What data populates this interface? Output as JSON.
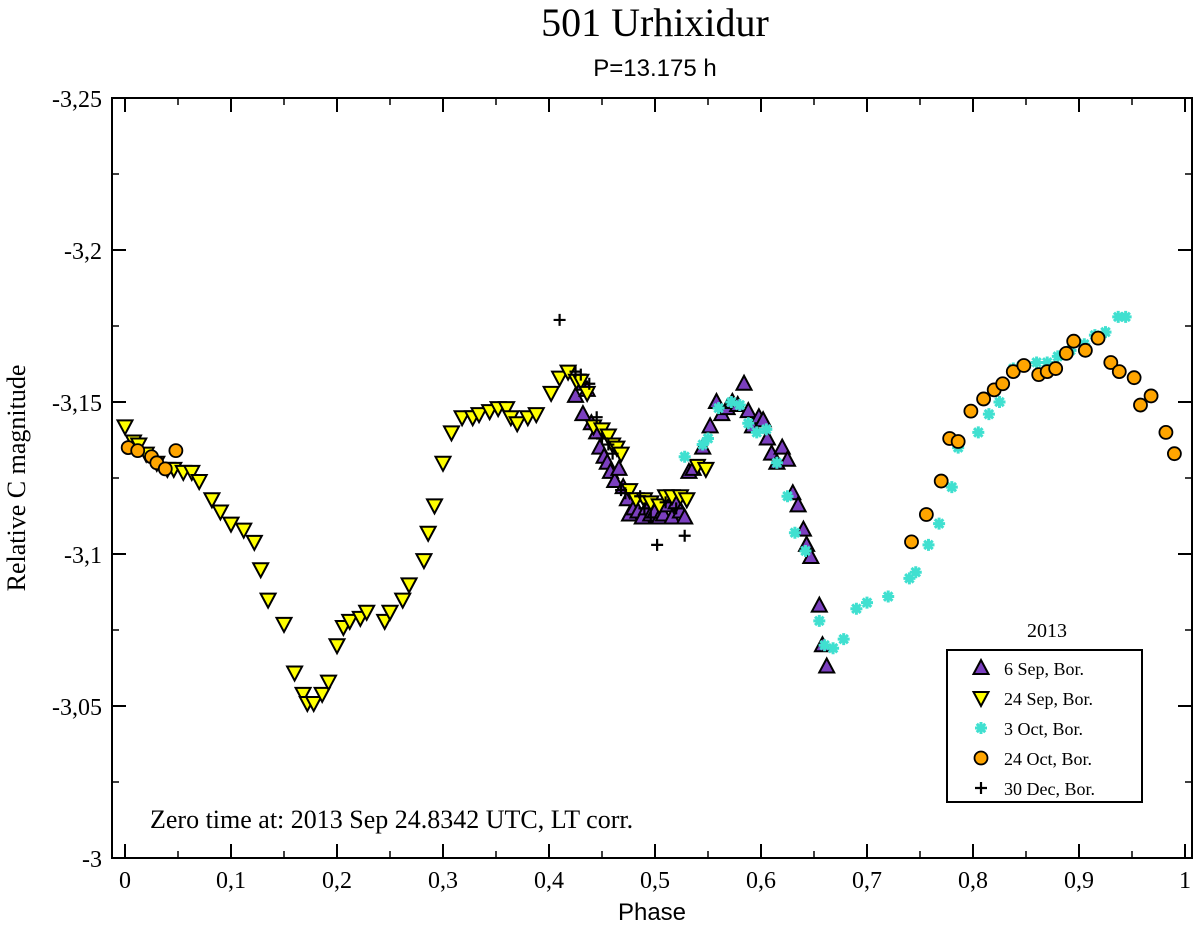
{
  "chart_data": {
    "type": "scatter",
    "title": "501 Urhixidur",
    "subtitle": "P=13.175 h",
    "xlabel": "Phase",
    "ylabel": "Relative C magnitude",
    "xlim": [
      0,
      1
    ],
    "ylim": [
      -3.25,
      -3.0
    ],
    "y_inverted": true,
    "x_ticks": [
      0,
      0.1,
      0.2,
      0.3,
      0.4,
      0.5,
      0.6,
      0.7,
      0.8,
      0.9,
      1
    ],
    "x_tick_labels": [
      "0",
      "0,1",
      "0,2",
      "0,3",
      "0,4",
      "0,5",
      "0,6",
      "0,7",
      "0,8",
      "0,9",
      "1"
    ],
    "y_ticks": [
      -3.25,
      -3.2,
      -3.15,
      -3.1,
      -3.05,
      -3.0
    ],
    "y_tick_labels": [
      "-3,25",
      "-3,2",
      "-3,15",
      "-3,1",
      "-3,05",
      "-3"
    ],
    "annotation": "Zero time at: 2013 Sep 24.8342 UTC, LT corr.",
    "legend_title": "2013",
    "legend_position": "bottom-right",
    "colors": {
      "sep6": "#7b3fbf",
      "sep24": "#ffff00",
      "oct3": "#40e0d0",
      "oct24": "#ffa500",
      "dec30": "#000000"
    },
    "series": [
      {
        "key": "sep6",
        "name": "6 Sep, Bor.",
        "marker": "triangle-up",
        "points": [
          [
            0.425,
            -3.152
          ],
          [
            0.432,
            -3.156
          ],
          [
            0.436,
            -3.154
          ],
          [
            0.432,
            -3.146
          ],
          [
            0.44,
            -3.143
          ],
          [
            0.445,
            -3.14
          ],
          [
            0.448,
            -3.135
          ],
          [
            0.452,
            -3.132
          ],
          [
            0.455,
            -3.13
          ],
          [
            0.458,
            -3.127
          ],
          [
            0.462,
            -3.124
          ],
          [
            0.466,
            -3.128
          ],
          [
            0.47,
            -3.122
          ],
          [
            0.474,
            -3.118
          ],
          [
            0.476,
            -3.113
          ],
          [
            0.48,
            -3.115
          ],
          [
            0.484,
            -3.114
          ],
          [
            0.488,
            -3.112
          ],
          [
            0.492,
            -3.115
          ],
          [
            0.496,
            -3.113
          ],
          [
            0.5,
            -3.114
          ],
          [
            0.504,
            -3.112
          ],
          [
            0.508,
            -3.113
          ],
          [
            0.512,
            -3.116
          ],
          [
            0.516,
            -3.112
          ],
          [
            0.52,
            -3.117
          ],
          [
            0.524,
            -3.114
          ],
          [
            0.528,
            -3.112
          ],
          [
            0.532,
            -3.127
          ],
          [
            0.536,
            -3.128
          ],
          [
            0.545,
            -3.135
          ],
          [
            0.552,
            -3.142
          ],
          [
            0.558,
            -3.15
          ],
          [
            0.563,
            -3.146
          ],
          [
            0.568,
            -3.148
          ],
          [
            0.573,
            -3.15
          ],
          [
            0.578,
            -3.149
          ],
          [
            0.584,
            -3.156
          ],
          [
            0.588,
            -3.147
          ],
          [
            0.592,
            -3.142
          ],
          [
            0.598,
            -3.145
          ],
          [
            0.602,
            -3.144
          ],
          [
            0.606,
            -3.138
          ],
          [
            0.61,
            -3.133
          ],
          [
            0.615,
            -3.13
          ],
          [
            0.62,
            -3.135
          ],
          [
            0.625,
            -3.131
          ],
          [
            0.63,
            -3.12
          ],
          [
            0.635,
            -3.116
          ],
          [
            0.64,
            -3.108
          ],
          [
            0.643,
            -3.103
          ],
          [
            0.647,
            -3.099
          ],
          [
            0.655,
            -3.083
          ],
          [
            0.658,
            -3.07
          ],
          [
            0.662,
            -3.063
          ]
        ]
      },
      {
        "key": "sep24",
        "name": "24 Sep, Bor.",
        "marker": "triangle-down",
        "points": [
          [
            0.0,
            -3.142
          ],
          [
            0.008,
            -3.137
          ],
          [
            0.013,
            -3.136
          ],
          [
            0.02,
            -3.133
          ],
          [
            0.03,
            -3.13
          ],
          [
            0.04,
            -3.128
          ],
          [
            0.046,
            -3.128
          ],
          [
            0.055,
            -3.127
          ],
          [
            0.063,
            -3.127
          ],
          [
            0.07,
            -3.124
          ],
          [
            0.082,
            -3.118
          ],
          [
            0.09,
            -3.114
          ],
          [
            0.1,
            -3.11
          ],
          [
            0.112,
            -3.108
          ],
          [
            0.122,
            -3.104
          ],
          [
            0.128,
            -3.095
          ],
          [
            0.135,
            -3.085
          ],
          [
            0.15,
            -3.077
          ],
          [
            0.16,
            -3.061
          ],
          [
            0.168,
            -3.054
          ],
          [
            0.172,
            -3.051
          ],
          [
            0.178,
            -3.051
          ],
          [
            0.186,
            -3.054
          ],
          [
            0.192,
            -3.058
          ],
          [
            0.2,
            -3.07
          ],
          [
            0.206,
            -3.076
          ],
          [
            0.212,
            -3.078
          ],
          [
            0.222,
            -3.079
          ],
          [
            0.228,
            -3.081
          ],
          [
            0.245,
            -3.078
          ],
          [
            0.25,
            -3.081
          ],
          [
            0.262,
            -3.085
          ],
          [
            0.268,
            -3.09
          ],
          [
            0.282,
            -3.098
          ],
          [
            0.286,
            -3.107
          ],
          [
            0.292,
            -3.116
          ],
          [
            0.3,
            -3.13
          ],
          [
            0.308,
            -3.14
          ],
          [
            0.318,
            -3.145
          ],
          [
            0.328,
            -3.145
          ],
          [
            0.334,
            -3.146
          ],
          [
            0.344,
            -3.147
          ],
          [
            0.352,
            -3.148
          ],
          [
            0.36,
            -3.148
          ],
          [
            0.364,
            -3.145
          ],
          [
            0.37,
            -3.143
          ],
          [
            0.38,
            -3.145
          ],
          [
            0.388,
            -3.146
          ],
          [
            0.402,
            -3.153
          ],
          [
            0.41,
            -3.158
          ],
          [
            0.418,
            -3.16
          ],
          [
            0.426,
            -3.157
          ],
          [
            0.43,
            -3.157
          ],
          [
            0.436,
            -3.153
          ],
          [
            0.442,
            -3.142
          ],
          [
            0.45,
            -3.141
          ],
          [
            0.456,
            -3.139
          ],
          [
            0.46,
            -3.136
          ],
          [
            0.464,
            -3.135
          ],
          [
            0.468,
            -3.133
          ],
          [
            0.476,
            -3.121
          ],
          [
            0.482,
            -3.118
          ],
          [
            0.49,
            -3.118
          ],
          [
            0.496,
            -3.117
          ],
          [
            0.504,
            -3.116
          ],
          [
            0.51,
            -3.119
          ],
          [
            0.516,
            -3.119
          ],
          [
            0.524,
            -3.119
          ],
          [
            0.53,
            -3.118
          ],
          [
            0.54,
            -3.129
          ],
          [
            0.548,
            -3.128
          ]
        ]
      },
      {
        "key": "oct3",
        "name": "3 Oct, Bor.",
        "marker": "asterisk",
        "points": [
          [
            0.528,
            -3.132
          ],
          [
            0.545,
            -3.136
          ],
          [
            0.55,
            -3.138
          ],
          [
            0.56,
            -3.148
          ],
          [
            0.572,
            -3.15
          ],
          [
            0.58,
            -3.149
          ],
          [
            0.588,
            -3.143
          ],
          [
            0.596,
            -3.14
          ],
          [
            0.605,
            -3.141
          ],
          [
            0.615,
            -3.13
          ],
          [
            0.625,
            -3.119
          ],
          [
            0.632,
            -3.107
          ],
          [
            0.642,
            -3.101
          ],
          [
            0.655,
            -3.078
          ],
          [
            0.66,
            -3.07
          ],
          [
            0.668,
            -3.069
          ],
          [
            0.678,
            -3.072
          ],
          [
            0.69,
            -3.082
          ],
          [
            0.7,
            -3.084
          ],
          [
            0.72,
            -3.086
          ],
          [
            0.74,
            -3.092
          ],
          [
            0.746,
            -3.094
          ],
          [
            0.758,
            -3.103
          ],
          [
            0.768,
            -3.11
          ],
          [
            0.78,
            -3.122
          ],
          [
            0.786,
            -3.135
          ],
          [
            0.805,
            -3.14
          ],
          [
            0.815,
            -3.146
          ],
          [
            0.825,
            -3.15
          ],
          [
            0.838,
            -3.161
          ],
          [
            0.846,
            -3.162
          ],
          [
            0.86,
            -3.163
          ],
          [
            0.87,
            -3.163
          ],
          [
            0.88,
            -3.165
          ],
          [
            0.892,
            -3.167
          ],
          [
            0.905,
            -3.169
          ],
          [
            0.915,
            -3.172
          ],
          [
            0.925,
            -3.173
          ],
          [
            0.937,
            -3.178
          ],
          [
            0.944,
            -3.178
          ]
        ]
      },
      {
        "key": "oct24",
        "name": "24 Oct, Bor.",
        "marker": "circle",
        "points": [
          [
            0.003,
            -3.135
          ],
          [
            0.012,
            -3.134
          ],
          [
            0.025,
            -3.132
          ],
          [
            0.03,
            -3.13
          ],
          [
            0.038,
            -3.128
          ],
          [
            0.048,
            -3.134
          ],
          [
            0.742,
            -3.104
          ],
          [
            0.756,
            -3.113
          ],
          [
            0.77,
            -3.124
          ],
          [
            0.778,
            -3.138
          ],
          [
            0.786,
            -3.137
          ],
          [
            0.798,
            -3.147
          ],
          [
            0.81,
            -3.151
          ],
          [
            0.82,
            -3.154
          ],
          [
            0.828,
            -3.156
          ],
          [
            0.838,
            -3.16
          ],
          [
            0.848,
            -3.162
          ],
          [
            0.862,
            -3.159
          ],
          [
            0.87,
            -3.16
          ],
          [
            0.878,
            -3.161
          ],
          [
            0.888,
            -3.166
          ],
          [
            0.895,
            -3.17
          ],
          [
            0.906,
            -3.167
          ],
          [
            0.918,
            -3.171
          ],
          [
            0.93,
            -3.163
          ],
          [
            0.938,
            -3.16
          ],
          [
            0.952,
            -3.158
          ],
          [
            0.958,
            -3.149
          ],
          [
            0.968,
            -3.152
          ],
          [
            0.982,
            -3.14
          ],
          [
            0.99,
            -3.133
          ]
        ]
      },
      {
        "key": "dec30",
        "name": "30 Dec, Bor.",
        "marker": "plus",
        "points": [
          [
            0.41,
            -3.177
          ],
          [
            0.425,
            -3.16
          ],
          [
            0.43,
            -3.159
          ],
          [
            0.438,
            -3.156
          ],
          [
            0.445,
            -3.145
          ],
          [
            0.45,
            -3.138
          ],
          [
            0.456,
            -3.136
          ],
          [
            0.46,
            -3.133
          ],
          [
            0.468,
            -3.121
          ],
          [
            0.472,
            -3.12
          ],
          [
            0.486,
            -3.119
          ],
          [
            0.49,
            -3.115
          ],
          [
            0.496,
            -3.112
          ],
          [
            0.502,
            -3.103
          ],
          [
            0.51,
            -3.117
          ],
          [
            0.52,
            -3.115
          ],
          [
            0.528,
            -3.106
          ]
        ]
      }
    ]
  }
}
